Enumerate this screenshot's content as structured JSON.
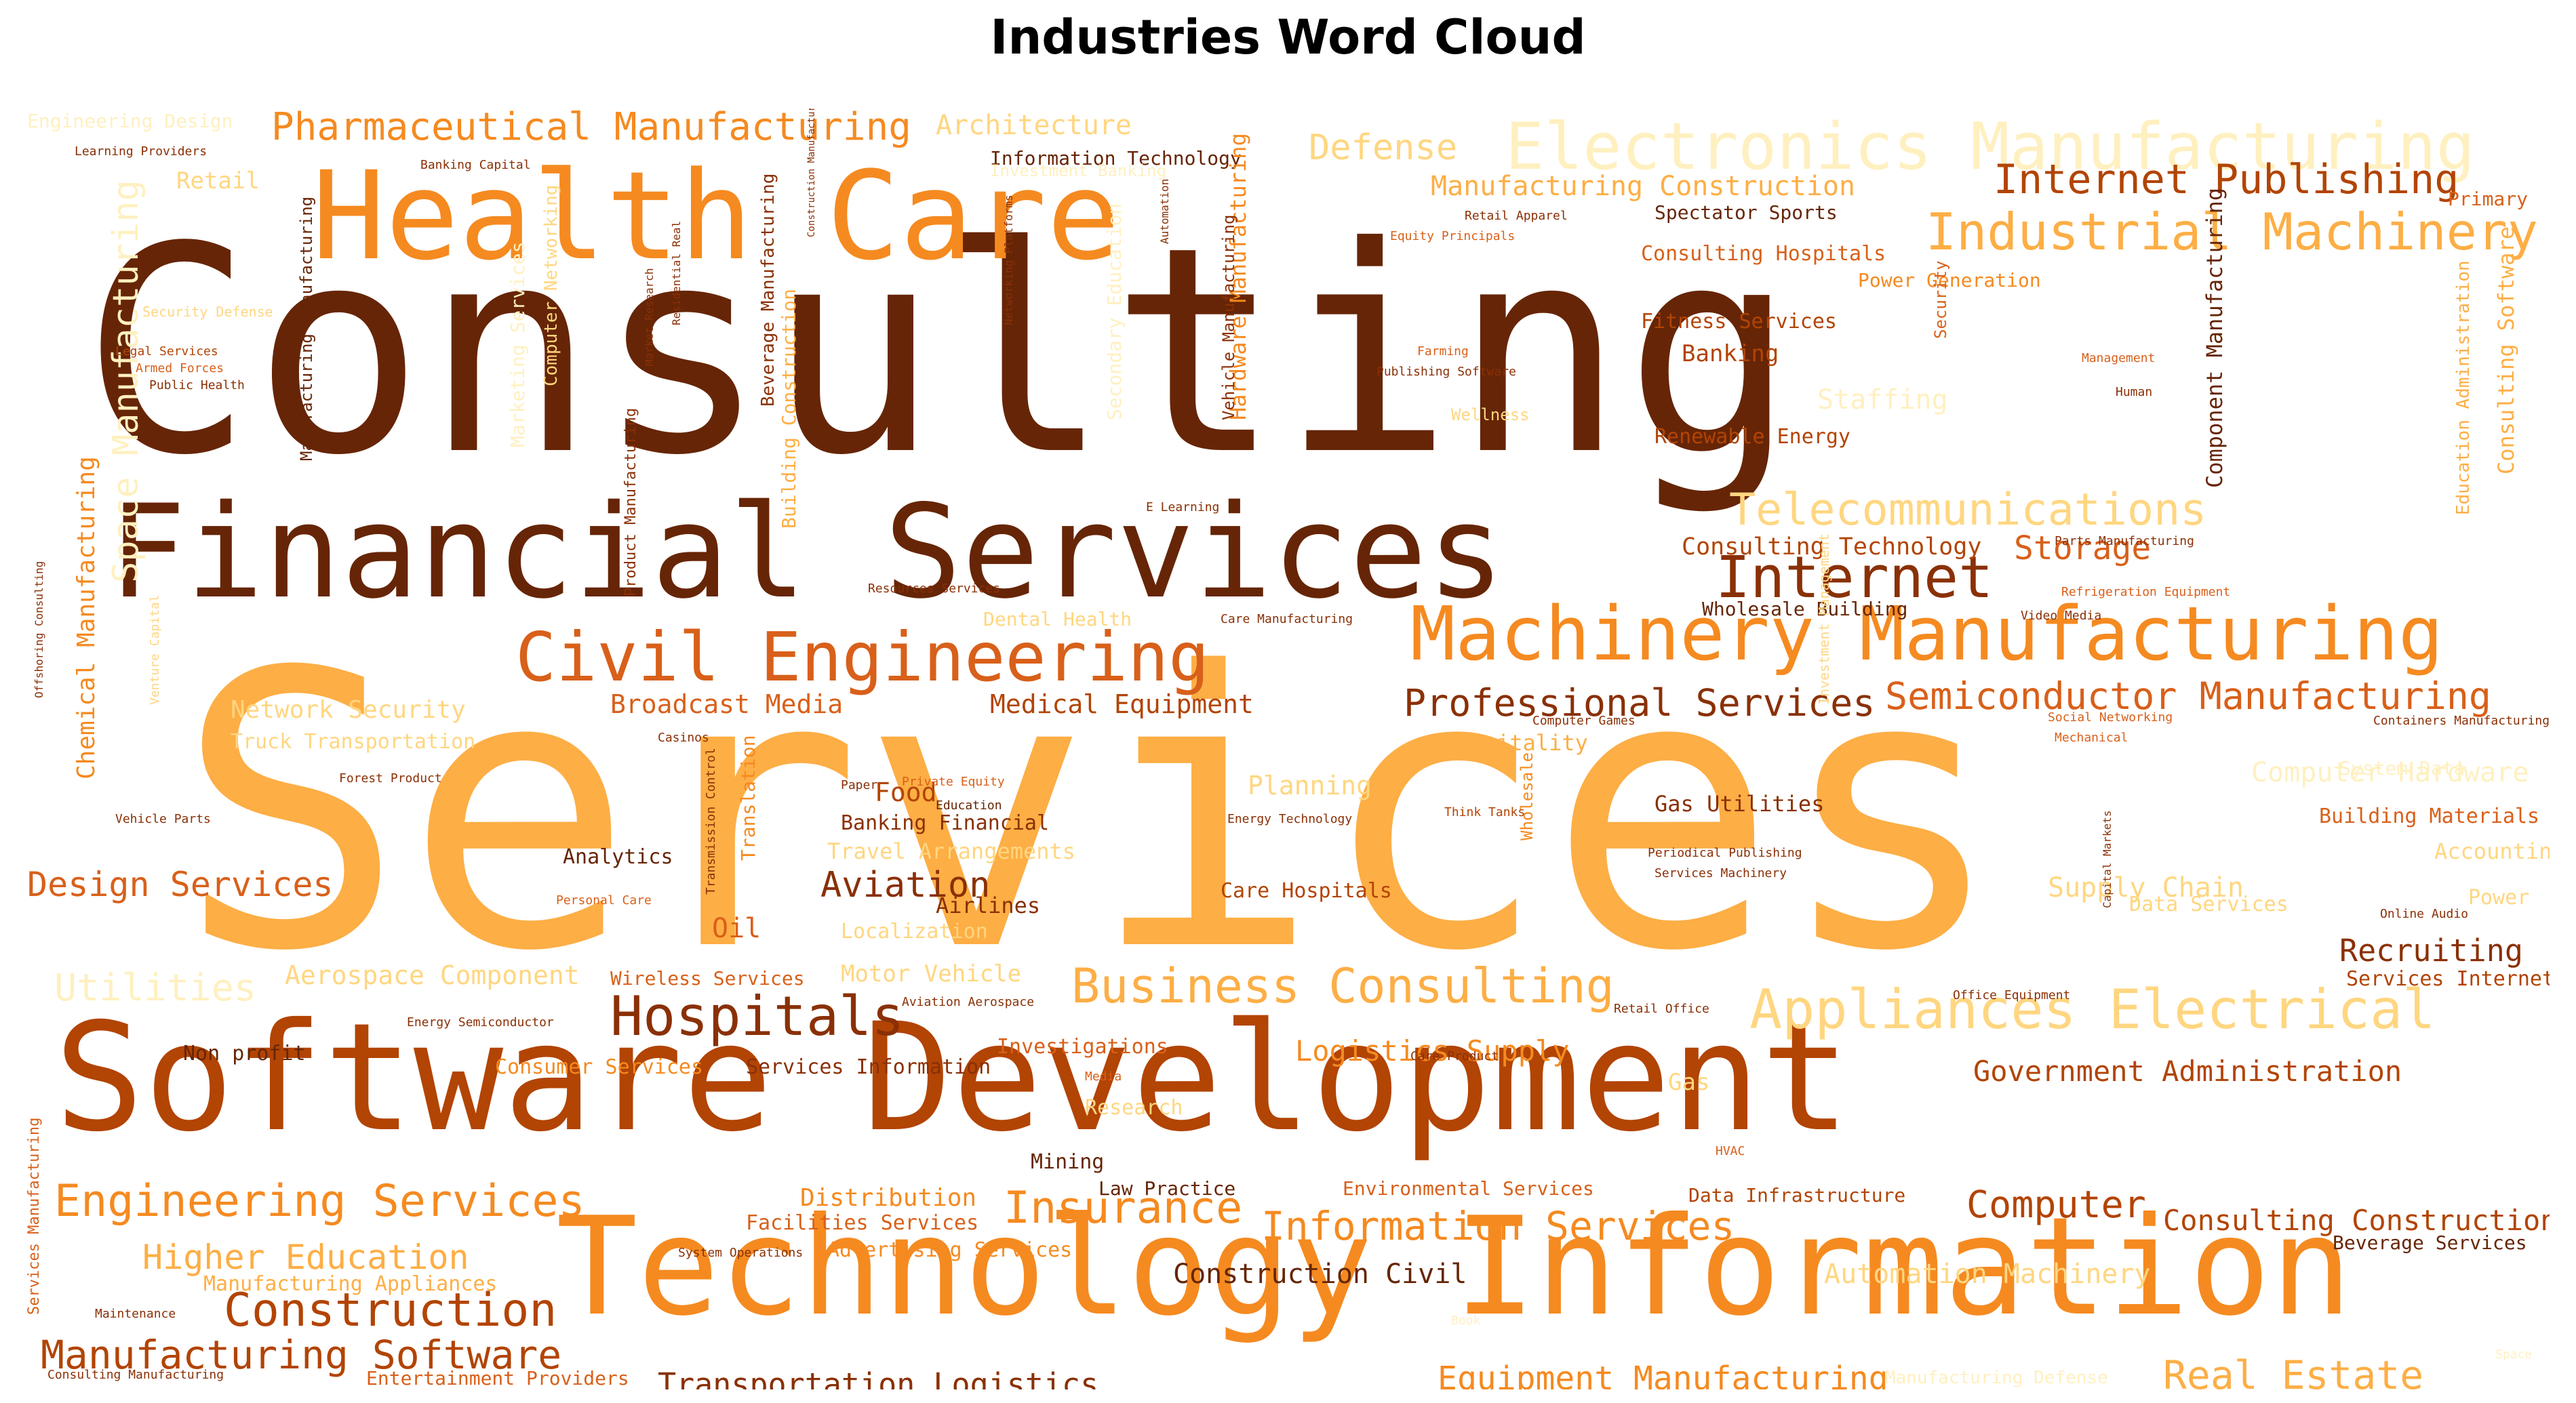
{
  "chart_data": {
    "type": "word_cloud",
    "title": "Industries Word Cloud",
    "palette": [
      "#FFF0C0",
      "#FFD680",
      "#FDAE45",
      "#F58A20",
      "#D8601A",
      "#B24404",
      "#8A3006",
      "#662506"
    ],
    "words": [
      {
        "text": "Consulting",
        "c": 7
      },
      {
        "text": "Services",
        "c": 2
      },
      {
        "text": "Software Development",
        "c": 5
      },
      {
        "text": "Technology Information",
        "c": 3
      },
      {
        "text": "Financial Services",
        "c": 7
      },
      {
        "text": "Health Care",
        "c": 3
      },
      {
        "text": "Machinery Manufacturing",
        "c": 3
      },
      {
        "text": "Electronics Manufacturing",
        "c": 0
      },
      {
        "text": "Civil Engineering",
        "c": 4
      },
      {
        "text": "Business Consulting",
        "c": 2
      },
      {
        "text": "Appliances Electrical",
        "c": 1
      },
      {
        "text": "Industrial Machinery",
        "c": 2
      },
      {
        "text": "Telecommunications",
        "c": 1
      },
      {
        "text": "Internet Publishing",
        "c": 5
      },
      {
        "text": "Internet",
        "c": 6
      },
      {
        "text": "Hospitals",
        "c": 6
      },
      {
        "text": "Engineering Services",
        "c": 3
      },
      {
        "text": "Insurance",
        "c": 3
      },
      {
        "text": "Information Services",
        "c": 3
      },
      {
        "text": "Construction",
        "c": 5
      },
      {
        "text": "Manufacturing Software",
        "c": 5
      },
      {
        "text": "Real Estate",
        "c": 2
      },
      {
        "text": "Pharmaceutical Manufacturing",
        "c": 3
      },
      {
        "text": "Semiconductor Manufacturing",
        "c": 4
      },
      {
        "text": "Professional Services",
        "c": 6
      },
      {
        "text": "Computer",
        "c": 5
      },
      {
        "text": "Higher Education",
        "c": 2
      },
      {
        "text": "Recruiting",
        "c": 6
      },
      {
        "text": "Storage",
        "c": 4
      },
      {
        "text": "Defense",
        "c": 1
      },
      {
        "text": "Design Services",
        "c": 4
      },
      {
        "text": "Utilities",
        "c": 0
      },
      {
        "text": "Aviation",
        "c": 6
      },
      {
        "text": "Equipment Manufacturing",
        "c": 3
      },
      {
        "text": "Transportation Logistics",
        "c": 6
      },
      {
        "text": "Government Administration",
        "c": 5
      },
      {
        "text": "Logistics Supply",
        "c": 3
      },
      {
        "text": "Consulting Construction",
        "c": 5
      },
      {
        "text": "Automation Machinery",
        "c": 1
      },
      {
        "text": "Construction Civil",
        "c": 7
      },
      {
        "text": "Architecture",
        "c": 1
      },
      {
        "text": "Manufacturing Construction",
        "c": 2
      },
      {
        "text": "Consulting Technology",
        "c": 5
      },
      {
        "text": "Broadcast Media",
        "c": 4
      },
      {
        "text": "Medical Equipment",
        "c": 5
      },
      {
        "text": "Network Security",
        "c": 1
      },
      {
        "text": "Supply Chain",
        "c": 1
      },
      {
        "text": "Aerospace Component",
        "c": 1
      },
      {
        "text": "Building Materials",
        "c": 4
      },
      {
        "text": "Planning",
        "c": 1
      },
      {
        "text": "Banking",
        "c": 5
      },
      {
        "text": "Staffing",
        "c": 0
      },
      {
        "text": "Renewable Energy",
        "c": 5
      },
      {
        "text": "Fitness Services",
        "c": 5
      },
      {
        "text": "Spectator Sports",
        "c": 7
      },
      {
        "text": "Information Technology",
        "c": 7
      },
      {
        "text": "Consulting Hospitals",
        "c": 4
      },
      {
        "text": "Power Generation",
        "c": 3
      },
      {
        "text": "Wholesale Building",
        "c": 7
      },
      {
        "text": "Food",
        "c": 5
      },
      {
        "text": "Banking Financial",
        "c": 6
      },
      {
        "text": "Travel Arrangements",
        "c": 1
      },
      {
        "text": "Airlines",
        "c": 6
      },
      {
        "text": "Gas Utilities",
        "c": 6
      },
      {
        "text": "Analytics",
        "c": 7
      },
      {
        "text": "Oil",
        "c": 4
      },
      {
        "text": "Motor Vehicle",
        "c": 1
      },
      {
        "text": "Localization",
        "c": 1
      },
      {
        "text": "Wireless Services",
        "c": 4
      },
      {
        "text": "Hospitality",
        "c": 2
      },
      {
        "text": "Care Hospitals",
        "c": 5
      },
      {
        "text": "Accounting",
        "c": 1
      },
      {
        "text": "Data Services",
        "c": 1
      },
      {
        "text": "Services Internet",
        "c": 5
      },
      {
        "text": "Investigations",
        "c": 4
      },
      {
        "text": "Services Information",
        "c": 6
      },
      {
        "text": "Consumer Services",
        "c": 3
      },
      {
        "text": "Non profit",
        "c": 7
      },
      {
        "text": "Research",
        "c": 1
      },
      {
        "text": "Mining",
        "c": 7
      },
      {
        "text": "Distribution",
        "c": 3
      },
      {
        "text": "Facilities Services",
        "c": 4
      },
      {
        "text": "Advertising Services",
        "c": 3
      },
      {
        "text": "Law Practice",
        "c": 7
      },
      {
        "text": "Environmental Services",
        "c": 4
      },
      {
        "text": "Data Infrastructure",
        "c": 5
      },
      {
        "text": "Beverage Services",
        "c": 7
      },
      {
        "text": "Manufacturing Appliances",
        "c": 2
      },
      {
        "text": "Entertainment Providers",
        "c": 4
      },
      {
        "text": "Manufacturing Defense",
        "c": 0
      },
      {
        "text": "Retail",
        "c": 1
      },
      {
        "text": "Primary",
        "c": 4
      },
      {
        "text": "Engineering Design",
        "c": 0
      },
      {
        "text": "Investment Banking",
        "c": 0
      },
      {
        "text": "Space Manufacturing",
        "c": 0
      },
      {
        "text": "Chemical Manufacturing",
        "c": 3
      },
      {
        "text": "Component Manufacturing",
        "c": 7
      },
      {
        "text": "Consulting Software",
        "c": 2
      },
      {
        "text": "Education Administration",
        "c": 2
      },
      {
        "text": "Beverage Manufacturing",
        "c": 6
      },
      {
        "text": "Manufacturing Manufacturing",
        "c": 7
      },
      {
        "text": "Building Construction",
        "c": 2
      },
      {
        "text": "Product Manufacturing",
        "c": 6
      },
      {
        "text": "Hardware Manufacturing",
        "c": 3
      },
      {
        "text": "Vehicle Manufacturing",
        "c": 6
      },
      {
        "text": "Transmission Control",
        "c": 6
      },
      {
        "text": "Translation",
        "c": 3
      },
      {
        "text": "Marketing Services",
        "c": 0
      },
      {
        "text": "Computer Networking",
        "c": 1
      },
      {
        "text": "Secondary Education",
        "c": 0
      },
      {
        "text": "Wholesale",
        "c": 3
      },
      {
        "text": "Security",
        "c": 4
      },
      {
        "text": "Services Manufacturing",
        "c": 4
      },
      {
        "text": "Legal Services",
        "c": 5
      },
      {
        "text": "Armed Forces",
        "c": 4
      },
      {
        "text": "Public Health",
        "c": 6
      },
      {
        "text": "Learning Providers",
        "c": 6
      },
      {
        "text": "Banking Capital",
        "c": 6
      },
      {
        "text": "Retail Apparel",
        "c": 6
      },
      {
        "text": "Equity Principals",
        "c": 4
      },
      {
        "text": "Farming",
        "c": 4
      },
      {
        "text": "Publishing Software",
        "c": 6
      },
      {
        "text": "Management",
        "c": 4
      },
      {
        "text": "Human",
        "c": 6
      },
      {
        "text": "E Learning",
        "c": 6
      },
      {
        "text": "Resources Services",
        "c": 6
      },
      {
        "text": "Parts Manufacturing",
        "c": 6
      },
      {
        "text": "Refrigeration Equipment",
        "c": 4
      },
      {
        "text": "Video Media",
        "c": 6
      },
      {
        "text": "Care Manufacturing",
        "c": 6
      },
      {
        "text": "Computer Games",
        "c": 6
      },
      {
        "text": "Social Networking",
        "c": 4
      },
      {
        "text": "Containers Manufacturing",
        "c": 6
      },
      {
        "text": "Mechanical",
        "c": 4
      },
      {
        "text": "Casinos",
        "c": 6
      },
      {
        "text": "Forest Product",
        "c": 6
      },
      {
        "text": "Paper",
        "c": 6
      },
      {
        "text": "Private Equity",
        "c": 4
      },
      {
        "text": "Education",
        "c": 7
      },
      {
        "text": "Energy Technology",
        "c": 6
      },
      {
        "text": "Think Tanks",
        "c": 5
      },
      {
        "text": "Periodical Publishing",
        "c": 6
      },
      {
        "text": "Services Machinery",
        "c": 6
      },
      {
        "text": "Online Audio",
        "c": 6
      },
      {
        "text": "Aviation Aerospace",
        "c": 6
      },
      {
        "text": "Retail Office",
        "c": 6
      },
      {
        "text": "Office Equipment",
        "c": 6
      },
      {
        "text": "Energy Semiconductor",
        "c": 6
      },
      {
        "text": "Care Product",
        "c": 6
      },
      {
        "text": "Media",
        "c": 4
      },
      {
        "text": "Vehicle Parts",
        "c": 6
      },
      {
        "text": "Personal Care",
        "c": 4
      },
      {
        "text": "System Operations",
        "c": 6
      },
      {
        "text": "Maintenance",
        "c": 6
      },
      {
        "text": "Consulting Manufacturing",
        "c": 6
      },
      {
        "text": "Offshoring Consulting",
        "c": 6
      },
      {
        "text": "Automation",
        "c": 6
      },
      {
        "text": "Residential Real",
        "c": 6
      },
      {
        "text": "Market Research",
        "c": 6
      },
      {
        "text": "Networking Platforms",
        "c": 6
      },
      {
        "text": "Construction Manufacturing",
        "c": 6
      },
      {
        "text": "Capital Markets",
        "c": 6
      },
      {
        "text": "HVAC",
        "c": 4
      },
      {
        "text": "Security Defense",
        "c": 1
      },
      {
        "text": "Dental Health",
        "c": 1
      },
      {
        "text": "Investment Management",
        "c": 1
      },
      {
        "text": "Computer Hardware",
        "c": 0
      },
      {
        "text": "System Data",
        "c": 0
      },
      {
        "text": "Truck Transportation",
        "c": 1
      },
      {
        "text": "Venture Capital",
        "c": 1
      },
      {
        "text": "Gas",
        "c": 1
      },
      {
        "text": "Power",
        "c": 1
      },
      {
        "text": "Space",
        "c": 0
      },
      {
        "text": "Book",
        "c": 0
      },
      {
        "text": "Wellness",
        "c": 1
      }
    ]
  }
}
